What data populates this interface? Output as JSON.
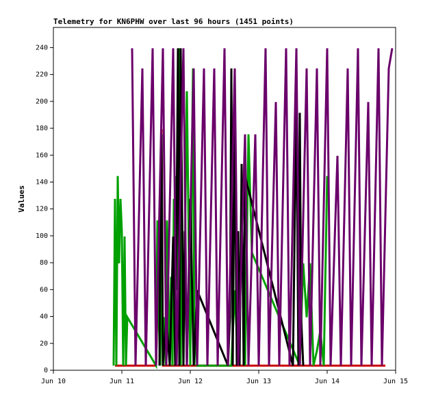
{
  "chart_data": {
    "type": "line",
    "title": "Telemetry for KN6PHW over last 96 hours (1451 points)",
    "xlabel": "",
    "ylabel": "Values",
    "x_ticks": [
      "Jun 10",
      "Jun 11",
      "Jun 12",
      "Jun 13",
      "Jun 14",
      "Jun 15"
    ],
    "xlim": [
      "Jun 10",
      "Jun 15"
    ],
    "ylim": [
      0,
      255
    ],
    "y_ticks": [
      0,
      20,
      40,
      60,
      80,
      100,
      120,
      140,
      160,
      180,
      200,
      220,
      240
    ],
    "grid": false,
    "legend": "none",
    "colors": {
      "red": "#cc0000",
      "green": "#00a000",
      "black": "#000000",
      "purple": "#6a006a"
    },
    "series": [
      {
        "color": "red",
        "x": [
          10.9,
          11.0,
          11.5,
          11.55,
          11.58,
          11.6,
          11.62,
          11.65,
          14.85
        ],
        "y": [
          4,
          4,
          4,
          112,
          180,
          4,
          4,
          4,
          4
        ]
      },
      {
        "color": "green",
        "x": [
          10.88,
          10.9,
          10.92,
          10.94,
          10.96,
          10.98,
          11.0,
          11.02,
          11.04,
          11.06,
          11.08,
          11.5,
          11.52,
          11.54,
          11.56,
          11.58,
          11.6,
          11.62,
          11.64,
          11.66,
          11.68,
          11.7,
          11.72,
          11.74,
          11.76,
          11.78,
          11.8,
          11.82,
          11.84,
          11.86,
          11.88,
          11.9,
          11.95,
          12.0,
          12.02,
          12.04,
          12.06,
          12.08,
          12.1,
          12.6,
          12.65,
          12.7,
          12.75,
          12.8,
          12.85,
          12.9,
          13.6,
          13.65,
          13.7,
          13.75,
          13.8,
          13.85,
          13.9,
          13.95,
          14.0
        ],
        "y": [
          4,
          128,
          4,
          145,
          80,
          128,
          104,
          4,
          100,
          4,
          40,
          4,
          112,
          40,
          4,
          90,
          4,
          40,
          4,
          112,
          60,
          4,
          70,
          4,
          128,
          4,
          145,
          60,
          240,
          4,
          120,
          4,
          208,
          4,
          145,
          225,
          4,
          40,
          4,
          4,
          60,
          4,
          112,
          4,
          176,
          88,
          4,
          80,
          40,
          80,
          4,
          15,
          30,
          4,
          145
        ]
      },
      {
        "color": "black",
        "x": [
          11.55,
          11.56,
          11.58,
          11.6,
          11.65,
          11.7,
          11.75,
          11.78,
          11.8,
          11.82,
          11.84,
          11.86,
          11.9,
          11.92,
          11.95,
          12.0,
          12.05,
          12.1,
          12.55,
          12.58,
          12.6,
          12.62,
          12.65,
          12.68,
          12.7,
          12.72,
          12.75,
          12.78,
          12.8,
          13.5,
          13.55,
          13.58,
          13.6,
          13.62,
          13.65
        ],
        "y": [
          4,
          88,
          176,
          4,
          40,
          4,
          100,
          4,
          112,
          240,
          4,
          240,
          4,
          104,
          4,
          128,
          4,
          60,
          4,
          40,
          225,
          4,
          192,
          4,
          104,
          4,
          154,
          4,
          145,
          4,
          208,
          4,
          192,
          40,
          4
        ]
      },
      {
        "color": "purple",
        "x": [
          11.15,
          11.2,
          11.3,
          11.35,
          11.45,
          11.5,
          11.6,
          11.65,
          11.75,
          11.8,
          11.9,
          11.95,
          12.05,
          12.1,
          12.2,
          12.25,
          12.35,
          12.4,
          12.5,
          12.55,
          12.65,
          12.7,
          12.8,
          12.85,
          12.95,
          13.0,
          13.1,
          13.15,
          13.25,
          13.3,
          13.4,
          13.45,
          13.55,
          13.6,
          13.7,
          13.75,
          13.85,
          13.9,
          14.0,
          14.05,
          14.15,
          14.2,
          14.3,
          14.35,
          14.45,
          14.5,
          14.6,
          14.65,
          14.75,
          14.8,
          14.9,
          14.95
        ],
        "y": [
          240,
          4,
          225,
          4,
          240,
          4,
          240,
          4,
          240,
          4,
          240,
          4,
          225,
          4,
          225,
          4,
          225,
          4,
          240,
          4,
          225,
          4,
          176,
          4,
          176,
          4,
          240,
          4,
          200,
          4,
          240,
          4,
          240,
          4,
          225,
          4,
          225,
          4,
          240,
          4,
          160,
          4,
          225,
          4,
          240,
          4,
          200,
          4,
          240,
          4,
          225,
          240
        ]
      }
    ]
  }
}
